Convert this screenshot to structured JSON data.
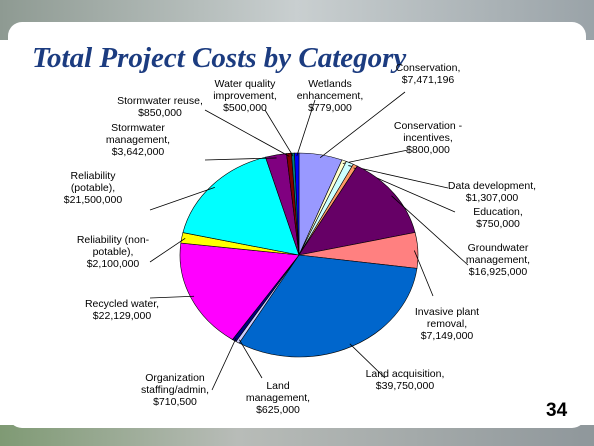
{
  "chart_data": {
    "type": "pie",
    "title": "Total Project Costs by Category",
    "slide_number": "34",
    "categories": [
      "Conservation,",
      "Conservation - incentives,",
      "Data development,",
      "Education,",
      "Groundwater management,",
      "Invasive plant removal,",
      "Land acquisition,",
      "Land management,",
      "Organization staffing/admin,",
      "Recycled water,",
      "Reliability (non-potable),",
      "Reliability (potable),",
      "Stormwater management,",
      "Stormwater reuse,",
      "Water quality improvement,",
      "Wetlands enhancement,"
    ],
    "values": [
      7471196,
      800000,
      1307000,
      750000,
      16925000,
      7149000,
      39750000,
      625000,
      710500,
      22129000,
      2100000,
      21500000,
      3642000,
      850000,
      500000,
      779000
    ],
    "value_labels": [
      "$7,471,196",
      "$800,000",
      "$1,307,000",
      "$750,000",
      "$16,925,000",
      "$7,149,000",
      "$39,750,000",
      "$625,000",
      "$710,500",
      "$22,129,000",
      "$2,100,000",
      "$21,500,000",
      "$3,642,000",
      "$850,000",
      "$500,000",
      "$779,000"
    ],
    "colors": [
      "#9999ff",
      "#ffffcc",
      "#ccffff",
      "#ff9966",
      "#660066",
      "#ff8080",
      "#0066cc",
      "#ccccff",
      "#000080",
      "#ff00ff",
      "#ffff00",
      "#00ffff",
      "#800080",
      "#800000",
      "#008080",
      "#0000ff"
    ]
  }
}
